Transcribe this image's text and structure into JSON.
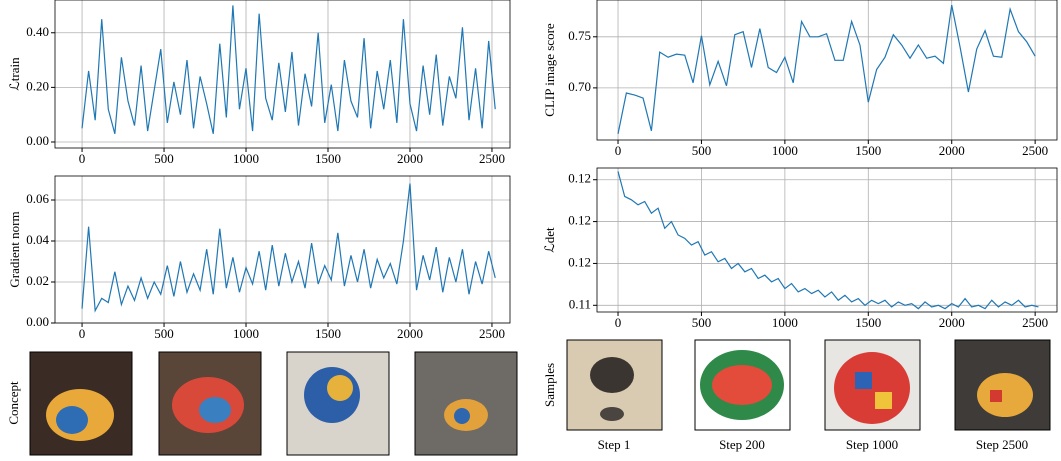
{
  "chart_data": [
    {
      "type": "line",
      "ylabel": "ℒtrain",
      "grid": true,
      "color": "#1f77b4",
      "xlim": [
        -165,
        2610
      ],
      "ylim": [
        -0.022,
        0.52
      ],
      "xticks": [
        0,
        500,
        1000,
        1500,
        2000,
        2500
      ],
      "yticks": [
        {
          "value": 0,
          "label": "0.00"
        },
        {
          "value": 0.2,
          "label": "0.20"
        },
        {
          "value": 0.4,
          "label": "0.40"
        }
      ],
      "x": [
        0,
        40,
        80,
        120,
        160,
        200,
        240,
        280,
        320,
        360,
        400,
        440,
        480,
        520,
        560,
        600,
        640,
        680,
        720,
        760,
        800,
        840,
        880,
        920,
        960,
        1000,
        1040,
        1080,
        1120,
        1160,
        1200,
        1240,
        1280,
        1320,
        1360,
        1400,
        1440,
        1480,
        1520,
        1560,
        1600,
        1640,
        1680,
        1720,
        1760,
        1800,
        1840,
        1880,
        1920,
        1960,
        2000,
        2040,
        2080,
        2120,
        2160,
        2200,
        2240,
        2280,
        2320,
        2360,
        2400,
        2440,
        2480,
        2520
      ],
      "values": [
        0.05,
        0.26,
        0.08,
        0.45,
        0.12,
        0.03,
        0.31,
        0.15,
        0.06,
        0.28,
        0.04,
        0.19,
        0.34,
        0.07,
        0.22,
        0.1,
        0.3,
        0.05,
        0.24,
        0.14,
        0.03,
        0.36,
        0.09,
        0.5,
        0.12,
        0.27,
        0.04,
        0.47,
        0.16,
        0.08,
        0.29,
        0.11,
        0.33,
        0.06,
        0.25,
        0.13,
        0.4,
        0.07,
        0.21,
        0.04,
        0.3,
        0.15,
        0.09,
        0.38,
        0.05,
        0.26,
        0.12,
        0.3,
        0.07,
        0.45,
        0.14,
        0.04,
        0.28,
        0.1,
        0.32,
        0.06,
        0.24,
        0.16,
        0.42,
        0.08,
        0.27,
        0.05,
        0.37,
        0.12
      ]
    },
    {
      "type": "line",
      "ylabel": "Gradient norm",
      "grid": true,
      "color": "#1f77b4",
      "xlim": [
        -165,
        2610
      ],
      "ylim": [
        0,
        0.0717
      ],
      "xticks": [
        0,
        500,
        1000,
        1500,
        2000,
        2500
      ],
      "yticks": [
        {
          "value": 0,
          "label": "0.00"
        },
        {
          "value": 0.02,
          "label": "0.02"
        },
        {
          "value": 0.04,
          "label": "0.04"
        },
        {
          "value": 0.06,
          "label": "0.06"
        }
      ],
      "x": [
        0,
        40,
        80,
        120,
        160,
        200,
        240,
        280,
        320,
        360,
        400,
        440,
        480,
        520,
        560,
        600,
        640,
        680,
        720,
        760,
        800,
        840,
        880,
        920,
        960,
        1000,
        1040,
        1080,
        1120,
        1160,
        1200,
        1240,
        1280,
        1320,
        1360,
        1400,
        1440,
        1480,
        1520,
        1560,
        1600,
        1640,
        1680,
        1720,
        1760,
        1800,
        1840,
        1880,
        1920,
        1960,
        2000,
        2040,
        2080,
        2120,
        2160,
        2200,
        2240,
        2280,
        2320,
        2360,
        2400,
        2440,
        2480,
        2520
      ],
      "values": [
        0.007,
        0.047,
        0.006,
        0.012,
        0.01,
        0.025,
        0.009,
        0.018,
        0.011,
        0.022,
        0.012,
        0.02,
        0.014,
        0.028,
        0.013,
        0.03,
        0.015,
        0.024,
        0.016,
        0.036,
        0.014,
        0.046,
        0.017,
        0.032,
        0.015,
        0.027,
        0.019,
        0.035,
        0.016,
        0.038,
        0.018,
        0.034,
        0.02,
        0.03,
        0.017,
        0.039,
        0.019,
        0.028,
        0.021,
        0.044,
        0.018,
        0.033,
        0.02,
        0.036,
        0.017,
        0.031,
        0.022,
        0.029,
        0.019,
        0.04,
        0.068,
        0.016,
        0.033,
        0.021,
        0.037,
        0.015,
        0.032,
        0.02,
        0.036,
        0.014,
        0.03,
        0.019,
        0.035,
        0.022
      ]
    },
    {
      "type": "line",
      "ylabel": "CLIP image score",
      "grid": true,
      "color": "#1f77b4",
      "xlim": [
        -126,
        2631
      ],
      "ylim": [
        0.649,
        0.786
      ],
      "xticks": [
        0,
        500,
        1000,
        1500,
        2000,
        2500
      ],
      "yticks": [
        {
          "value": 0.7,
          "label": "0.70"
        },
        0.75
      ],
      "x": [
        0,
        50,
        100,
        150,
        200,
        250,
        300,
        350,
        400,
        450,
        500,
        550,
        600,
        650,
        700,
        750,
        800,
        850,
        900,
        950,
        1000,
        1050,
        1100,
        1150,
        1200,
        1250,
        1300,
        1350,
        1400,
        1450,
        1500,
        1550,
        1600,
        1650,
        1700,
        1750,
        1800,
        1850,
        1900,
        1950,
        2000,
        2050,
        2100,
        2150,
        2200,
        2250,
        2300,
        2350,
        2400,
        2450,
        2500
      ],
      "values": [
        0.655,
        0.695,
        0.693,
        0.69,
        0.658,
        0.735,
        0.73,
        0.733,
        0.732,
        0.705,
        0.751,
        0.703,
        0.726,
        0.702,
        0.752,
        0.755,
        0.72,
        0.758,
        0.72,
        0.715,
        0.73,
        0.705,
        0.765,
        0.75,
        0.75,
        0.753,
        0.727,
        0.727,
        0.765,
        0.742,
        0.686,
        0.718,
        0.73,
        0.752,
        0.742,
        0.729,
        0.742,
        0.729,
        0.731,
        0.724,
        0.781,
        0.74,
        0.696,
        0.738,
        0.756,
        0.731,
        0.73,
        0.777,
        0.755,
        0.745,
        0.731
      ]
    },
    {
      "type": "line",
      "ylabel": "ℒdet",
      "grid": true,
      "color": "#1f77b4",
      "xlim": [
        -126,
        2631
      ],
      "ylim": [
        0.1146,
        0.1232
      ],
      "xticks": [
        0,
        500,
        1000,
        1500,
        2000,
        2500
      ],
      "yticks": [
        {
          "value": 0.115,
          "label": "0.11"
        },
        {
          "value": 0.1175,
          "label": "0.12"
        },
        {
          "value": 0.12,
          "label": "0.12"
        },
        {
          "value": 0.1225,
          "label": "0.12"
        }
      ],
      "x": [
        0,
        40,
        80,
        120,
        160,
        200,
        240,
        280,
        320,
        360,
        400,
        440,
        480,
        520,
        560,
        600,
        640,
        680,
        720,
        760,
        800,
        840,
        880,
        920,
        960,
        1000,
        1040,
        1080,
        1120,
        1160,
        1200,
        1240,
        1280,
        1320,
        1360,
        1400,
        1440,
        1480,
        1520,
        1560,
        1600,
        1640,
        1680,
        1720,
        1760,
        1800,
        1840,
        1880,
        1920,
        1960,
        2000,
        2040,
        2080,
        2120,
        2160,
        2200,
        2240,
        2280,
        2320,
        2360,
        2400,
        2440,
        2480,
        2520
      ],
      "values": [
        0.123,
        0.1215,
        0.1213,
        0.121,
        0.1212,
        0.1205,
        0.1208,
        0.1196,
        0.12,
        0.1192,
        0.119,
        0.1186,
        0.1188,
        0.118,
        0.1182,
        0.1176,
        0.1178,
        0.1172,
        0.1175,
        0.117,
        0.1172,
        0.1166,
        0.1168,
        0.1164,
        0.1166,
        0.116,
        0.1163,
        0.1158,
        0.116,
        0.1157,
        0.1159,
        0.1155,
        0.1158,
        0.1153,
        0.1156,
        0.1152,
        0.1154,
        0.115,
        0.1153,
        0.1151,
        0.1153,
        0.1149,
        0.1152,
        0.115,
        0.1151,
        0.1148,
        0.1152,
        0.1149,
        0.115,
        0.1148,
        0.1151,
        0.1149,
        0.1154,
        0.1149,
        0.115,
        0.1148,
        0.1153,
        0.1149,
        0.1152,
        0.115,
        0.1153,
        0.1149,
        0.115,
        0.1149
      ]
    }
  ],
  "concept": {
    "label": "Concept"
  },
  "samples": {
    "label": "Samples",
    "captions": [
      "Step 1",
      "Step 200",
      "Step 1000",
      "Step 2500"
    ]
  }
}
